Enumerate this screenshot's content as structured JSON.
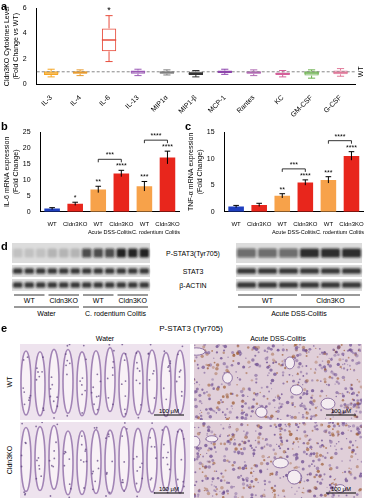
{
  "chart_data": [
    {
      "panel": "a",
      "type": "boxplot",
      "y_label": [
        "Cldn3KO Cytokines Level",
        "(Fold Change vs WT)"
      ],
      "categories": [
        "IL-3",
        "IL-4",
        "IL-6",
        "IL-13",
        "MIP1α",
        "MIP1-β",
        "MCP-1",
        "Rantes",
        "KC",
        "GM-CSF",
        "G-CSF"
      ],
      "boxes": [
        {
          "min": 0.6,
          "q1": 0.75,
          "median": 0.9,
          "q3": 1.05,
          "max": 1.2
        },
        {
          "min": 0.7,
          "q1": 0.85,
          "median": 0.95,
          "q3": 1.05,
          "max": 1.15
        },
        {
          "min": 1.8,
          "q1": 2.6,
          "median": 3.5,
          "q3": 4.4,
          "max": 5.4
        },
        {
          "min": 0.7,
          "q1": 0.85,
          "median": 1.0,
          "q3": 1.1,
          "max": 1.2
        },
        {
          "min": 0.75,
          "q1": 0.85,
          "median": 0.95,
          "q3": 1.05,
          "max": 1.15
        },
        {
          "min": 0.6,
          "q1": 0.75,
          "median": 0.85,
          "q3": 1.0,
          "max": 1.1
        },
        {
          "min": 0.8,
          "q1": 0.9,
          "median": 1.0,
          "q3": 1.1,
          "max": 1.2
        },
        {
          "min": 0.7,
          "q1": 0.85,
          "median": 0.95,
          "q3": 1.05,
          "max": 1.15
        },
        {
          "min": 0.6,
          "q1": 0.75,
          "median": 0.85,
          "q3": 0.95,
          "max": 1.1
        },
        {
          "min": 0.5,
          "q1": 0.7,
          "median": 0.9,
          "q3": 1.05,
          "max": 1.15
        },
        {
          "min": 0.65,
          "q1": 0.8,
          "median": 0.95,
          "q3": 1.1,
          "max": 1.25
        }
      ],
      "colors": [
        "#f5a623",
        "#e89b2e",
        "#e74c3c",
        "#9b59b6",
        "#7f7f7f",
        "#333333",
        "#8e44ad",
        "#b06ab3",
        "#d4609a",
        "#6ab04c",
        "#e07a9a"
      ],
      "significance": [
        null,
        null,
        "*",
        null,
        null,
        null,
        null,
        null,
        null,
        null,
        null
      ],
      "reference": {
        "value": 1,
        "label": "WT"
      },
      "ylim": [
        0,
        6
      ],
      "yticks": [
        0,
        2,
        4,
        6
      ],
      "grid": false
    },
    {
      "panel": "b",
      "type": "bar",
      "y_label": [
        "IL-6 mRNA expression",
        "(Fold Change)"
      ],
      "categories": [
        "WT",
        "Cldn3KO",
        "WT",
        "Cldn3KO",
        "WT",
        "Cldn3KO"
      ],
      "category_groups": [
        null,
        null,
        "Acute DSS-Colitis",
        "Acute DSS-Colitis",
        "C. rodentium Colitis",
        "C. rodentium Colitis"
      ],
      "values": [
        1,
        2.5,
        7,
        12,
        8,
        17
      ],
      "errors": [
        0.3,
        0.5,
        1,
        1,
        1.5,
        2
      ],
      "colors": [
        "#1f3fbf",
        "#e8261c",
        "#f7a24a",
        "#e8261c",
        "#f7a24a",
        "#e8261c"
      ],
      "significance": [
        null,
        "*",
        "**",
        "****",
        "***",
        "****"
      ],
      "brackets": [
        {
          "between": [
            2,
            3
          ],
          "label": "***"
        },
        {
          "between": [
            4,
            5
          ],
          "label": "****"
        }
      ],
      "ylim": [
        0,
        25
      ],
      "yticks": [
        0,
        5,
        10,
        15,
        20,
        25
      ],
      "grid": false
    },
    {
      "panel": "c",
      "type": "bar",
      "y_label": [
        "TNF-α mRNA expression",
        "(Fold Change)"
      ],
      "categories": [
        "WT",
        "Cldn3KO",
        "WT",
        "Cldn3KO",
        "WT",
        "Cldn3KO"
      ],
      "category_groups": [
        null,
        null,
        "Acute DSS-Colitis",
        "Acute DSS-Colitis",
        "C. rodentium Colitis",
        "C. rodentium Colitis"
      ],
      "values": [
        1,
        1.3,
        3,
        5.5,
        6,
        10.5
      ],
      "errors": [
        0.2,
        0.3,
        0.4,
        0.5,
        0.6,
        0.8
      ],
      "colors": [
        "#1f3fbf",
        "#e8261c",
        "#f7a24a",
        "#e8261c",
        "#f7a24a",
        "#e8261c"
      ],
      "significance": [
        null,
        null,
        "**",
        "****",
        "***",
        "****"
      ],
      "brackets": [
        {
          "between": [
            2,
            3
          ],
          "label": "***"
        },
        {
          "between": [
            4,
            5
          ],
          "label": "****"
        }
      ],
      "ylim": [
        0,
        15
      ],
      "yticks": [
        0,
        5,
        10,
        15
      ],
      "grid": false
    }
  ],
  "blot": {
    "panel": "d",
    "rows": [
      "P-STAT3(Tyr705)",
      "STAT3",
      "β-ACTIN"
    ],
    "left": {
      "lanes": [
        "WT",
        "Cldn3KO",
        "WT",
        "Cldn3KO"
      ],
      "conditions": [
        "Water",
        "C. rodentium Colitis"
      ]
    },
    "right": {
      "lanes": [
        "WT",
        "Cldn3KO"
      ],
      "conditions": [
        "Acute DSS-Colitis"
      ]
    }
  },
  "histology": {
    "panel": "e",
    "title": "P-STAT3 (Tyr705)",
    "columns": [
      "Water",
      "Acute DSS-Colitis"
    ],
    "rows": [
      "WT",
      "Cldn3KO"
    ],
    "scale_bar": "100 μM"
  }
}
